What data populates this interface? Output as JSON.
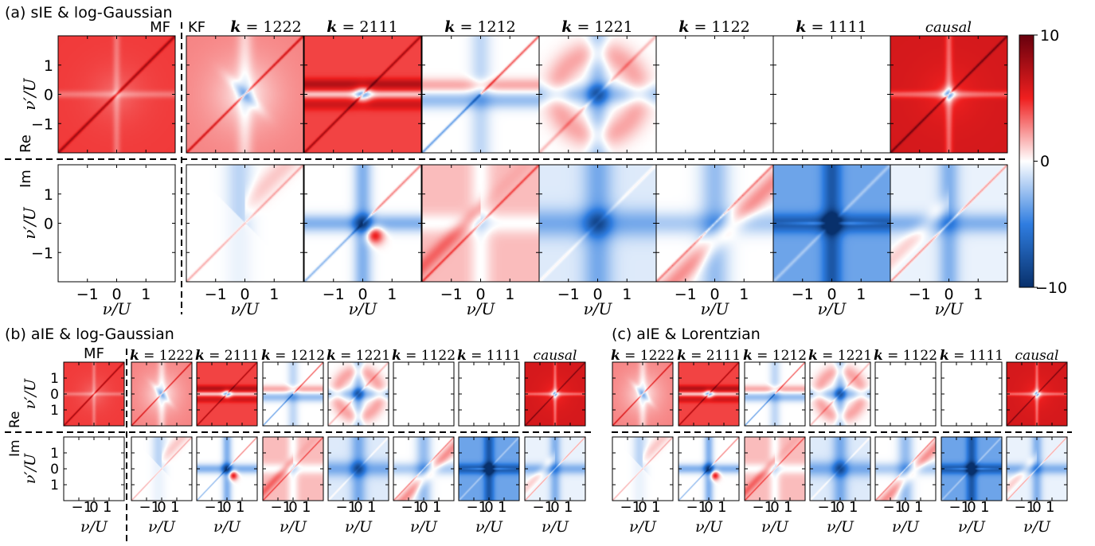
{
  "chart_data": {
    "type": "heatmap",
    "description_labels": {
      "a": "(a) sIE & log-Gaussian",
      "b": "(b) aIE & log-Gaussian",
      "c": "(c) aIE & Lorentzian"
    },
    "row_labels": [
      "Re",
      "Im"
    ],
    "column_labels": [
      "MF",
      "KF",
      "k = 1222",
      "k = 2111",
      "k = 1212",
      "k = 1221",
      "k = 1122",
      "k = 1111",
      "causal"
    ],
    "xlabel": "ν/U",
    "ylabel": "ν′/U",
    "xlim": [
      -2,
      2
    ],
    "ylim": [
      -2,
      2
    ],
    "ticks": [
      "−1",
      "0",
      "1"
    ],
    "colorbar": {
      "min": -10,
      "max": 10,
      "tick_labels": [
        "10",
        "0",
        "−10"
      ],
      "colormap": "seismic-like (blue-white-red)",
      "low_color": "#08306b",
      "mid_color": "#ffffff",
      "high_color": "#67000d"
    },
    "panels": [
      {
        "panel": "a",
        "part": "Re",
        "channel": "MF",
        "amplitude": 4.5,
        "pattern": "mf"
      },
      {
        "panel": "a",
        "part": "Re",
        "channel": "1222",
        "amplitude": 2.5,
        "pattern": "p1"
      },
      {
        "panel": "a",
        "part": "Re",
        "channel": "2111",
        "amplitude": 4.5,
        "pattern": "p2"
      },
      {
        "panel": "a",
        "part": "Re",
        "channel": "1212",
        "amplitude": -1.5,
        "pattern": "p3"
      },
      {
        "panel": "a",
        "part": "Re",
        "channel": "1221",
        "amplitude": -2.5,
        "pattern": "p4"
      },
      {
        "panel": "a",
        "part": "Re",
        "channel": "1122",
        "amplitude": 0,
        "pattern": "zero"
      },
      {
        "panel": "a",
        "part": "Re",
        "channel": "1111",
        "amplitude": 0,
        "pattern": "zero"
      },
      {
        "panel": "a",
        "part": "Re",
        "channel": "causal",
        "amplitude": 5,
        "pattern": "causal"
      },
      {
        "panel": "a",
        "part": "Im",
        "channel": "MF",
        "amplitude": 0,
        "pattern": "zero"
      },
      {
        "panel": "a",
        "part": "Im",
        "channel": "1222",
        "amplitude": 1.5,
        "pattern": "i1"
      },
      {
        "panel": "a",
        "part": "Im",
        "channel": "2111",
        "amplitude": 2,
        "pattern": "i2"
      },
      {
        "panel": "a",
        "part": "Im",
        "channel": "1212",
        "amplitude": 1.5,
        "pattern": "i3"
      },
      {
        "panel": "a",
        "part": "Im",
        "channel": "1221",
        "amplitude": -2.5,
        "pattern": "i4"
      },
      {
        "panel": "a",
        "part": "Im",
        "channel": "1122",
        "amplitude": 2,
        "pattern": "i5"
      },
      {
        "panel": "a",
        "part": "Im",
        "channel": "1111",
        "amplitude": -4,
        "pattern": "i6"
      },
      {
        "panel": "a",
        "part": "Im",
        "channel": "causal",
        "amplitude": -2,
        "pattern": "i7"
      }
    ]
  }
}
